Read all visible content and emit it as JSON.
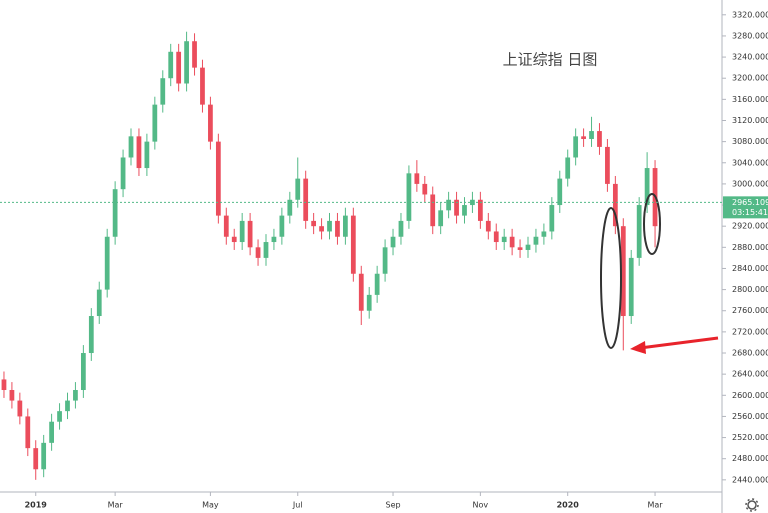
{
  "chart_data": {
    "type": "candlestick",
    "title": "上证综指 日图",
    "categories": [
      null,
      null,
      null,
      null,
      "2019",
      null,
      null,
      null,
      null,
      null,
      null,
      null,
      null,
      null,
      "Mar",
      null,
      null,
      null,
      null,
      null,
      null,
      null,
      null,
      null,
      null,
      null,
      "May",
      null,
      null,
      null,
      null,
      null,
      null,
      null,
      null,
      null,
      null,
      "Jul",
      null,
      null,
      null,
      null,
      null,
      null,
      null,
      null,
      null,
      null,
      null,
      "Sep",
      null,
      null,
      null,
      null,
      null,
      null,
      null,
      null,
      null,
      null,
      "Nov",
      null,
      null,
      null,
      null,
      null,
      null,
      null,
      null,
      null,
      null,
      "2020",
      null,
      null,
      null,
      null,
      null,
      null,
      null,
      null,
      null,
      null,
      "Mar"
    ],
    "open": [
      2630,
      2610,
      2590,
      2560,
      2500,
      2460,
      2510,
      2550,
      2570,
      2590,
      2610,
      2680,
      2750,
      2800,
      2900,
      2990,
      3050,
      3090,
      3030,
      3080,
      3150,
      3200,
      3250,
      3190,
      3270,
      3220,
      3150,
      3080,
      2940,
      2900,
      2890,
      2930,
      2880,
      2860,
      2890,
      2900,
      2940,
      2970,
      3010,
      2930,
      2920,
      2910,
      2930,
      2900,
      2940,
      2830,
      2760,
      2790,
      2830,
      2880,
      2900,
      2930,
      3020,
      3000,
      2980,
      2920,
      2950,
      2970,
      2940,
      2960,
      2970,
      2930,
      2910,
      2890,
      2900,
      2880,
      2875,
      2885,
      2900,
      2910,
      2960,
      3010,
      3050,
      3090,
      3085,
      3100,
      3070,
      3000,
      2920,
      2750,
      2860,
      2960,
      3030
    ],
    "high": [
      2645,
      2625,
      2605,
      2575,
      2515,
      2525,
      2565,
      2585,
      2605,
      2625,
      2695,
      2765,
      2815,
      2915,
      3005,
      3065,
      3105,
      3105,
      3095,
      3165,
      3215,
      3265,
      3265,
      3288,
      3285,
      3235,
      3165,
      3095,
      2955,
      2915,
      2945,
      2945,
      2895,
      2905,
      2915,
      2955,
      2985,
      3050,
      3025,
      2945,
      2935,
      2945,
      2945,
      2955,
      2955,
      2845,
      2805,
      2845,
      2895,
      2915,
      2945,
      3035,
      3045,
      3015,
      2995,
      2965,
      2985,
      2985,
      2975,
      2985,
      2985,
      2945,
      2925,
      2915,
      2915,
      2895,
      2900,
      2915,
      2925,
      2975,
      3025,
      3065,
      3105,
      3105,
      3127,
      3115,
      3085,
      3015,
      2935,
      2875,
      2975,
      3060,
      3045
    ],
    "low": [
      2595,
      2575,
      2545,
      2485,
      2440,
      2445,
      2495,
      2535,
      2555,
      2575,
      2595,
      2665,
      2735,
      2785,
      2885,
      2975,
      3035,
      3015,
      3015,
      3065,
      3135,
      3185,
      3175,
      3175,
      3205,
      3135,
      3065,
      2925,
      2885,
      2875,
      2875,
      2865,
      2845,
      2845,
      2875,
      2885,
      2925,
      2955,
      2915,
      2905,
      2895,
      2895,
      2885,
      2885,
      2815,
      2733,
      2745,
      2775,
      2815,
      2865,
      2885,
      2915,
      2985,
      2965,
      2905,
      2905,
      2935,
      2925,
      2925,
      2945,
      2915,
      2895,
      2875,
      2875,
      2865,
      2860,
      2860,
      2870,
      2885,
      2895,
      2945,
      2995,
      3035,
      3070,
      3070,
      3055,
      2985,
      2905,
      2685,
      2735,
      2845,
      2945,
      2880
    ],
    "close": [
      2610,
      2590,
      2560,
      2500,
      2460,
      2510,
      2550,
      2570,
      2590,
      2610,
      2680,
      2750,
      2800,
      2900,
      2990,
      3050,
      3090,
      3030,
      3080,
      3150,
      3200,
      3250,
      3190,
      3270,
      3220,
      3150,
      3080,
      2940,
      2900,
      2890,
      2930,
      2880,
      2860,
      2890,
      2900,
      2940,
      2970,
      3010,
      2930,
      2920,
      2910,
      2930,
      2900,
      2940,
      2830,
      2760,
      2790,
      2830,
      2880,
      2900,
      2930,
      3020,
      3000,
      2980,
      2920,
      2950,
      2970,
      2940,
      2960,
      2970,
      2930,
      2910,
      2890,
      2900,
      2880,
      2875,
      2885,
      2900,
      2910,
      2960,
      3010,
      3050,
      3090,
      3085,
      3100,
      3070,
      3000,
      2920,
      2750,
      2860,
      2960,
      3030,
      2920
    ],
    "up_color": "#53b987",
    "down_color": "#eb4d5c",
    "ylim": [
      2417,
      3348
    ],
    "yticks": [
      {
        "value": 2440,
        "label": "2440.000"
      },
      {
        "value": 2480,
        "label": "2480.000"
      },
      {
        "value": 2520,
        "label": "2520.000"
      },
      {
        "value": 2560,
        "label": "2560.000"
      },
      {
        "value": 2600,
        "label": "2600.000"
      },
      {
        "value": 2640,
        "label": "2640.000"
      },
      {
        "value": 2680,
        "label": "2680.000"
      },
      {
        "value": 2720,
        "label": "2720.000"
      },
      {
        "value": 2760,
        "label": "2760.000"
      },
      {
        "value": 2800,
        "label": "2800.000"
      },
      {
        "value": 2840,
        "label": "2840.000"
      },
      {
        "value": 2880,
        "label": "2880.000"
      },
      {
        "value": 2920,
        "label": "2920.000"
      },
      {
        "value": 2960,
        "label": "2960.000"
      },
      {
        "value": 3000,
        "label": "3000.000"
      },
      {
        "value": 3040,
        "label": "3040.000"
      },
      {
        "value": 3080,
        "label": "3080.000"
      },
      {
        "value": 3120,
        "label": "3120.000"
      },
      {
        "value": 3160,
        "label": "3160.000"
      },
      {
        "value": 3200,
        "label": "3200.000"
      },
      {
        "value": 3240,
        "label": "3240.000"
      },
      {
        "value": 3280,
        "label": "3280.000"
      },
      {
        "value": 3320,
        "label": "3320.000"
      }
    ],
    "grid": false,
    "last_price": 2965.109,
    "countdown": "03:15:41"
  }
}
